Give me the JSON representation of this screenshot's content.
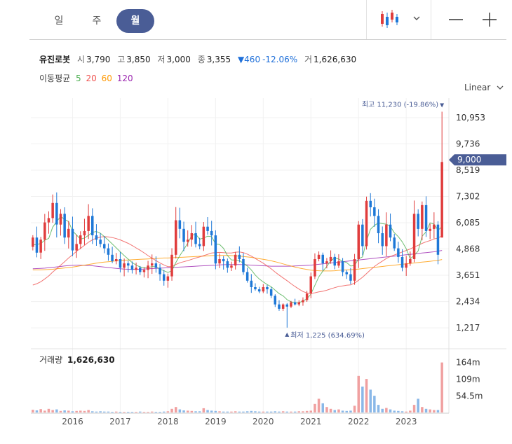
{
  "period_tabs": [
    {
      "label": "일",
      "active": false
    },
    {
      "label": "주",
      "active": false
    },
    {
      "label": "월",
      "active": true
    }
  ],
  "stock": {
    "name": "유진로봇",
    "open_label": "시",
    "open": "3,790",
    "high_label": "고",
    "high": "3,850",
    "low_label": "저",
    "low": "3,000",
    "close_label": "종",
    "close": "3,355",
    "change_symbol": "▼",
    "change": "460",
    "change_pct": "-12.06%",
    "volume_label": "거",
    "volume": "1,626,630"
  },
  "ma_legend": {
    "label": "이동평균",
    "items": [
      {
        "period": "5",
        "color": "#4caf50"
      },
      {
        "period": "20",
        "color": "#ef5350"
      },
      {
        "period": "60",
        "color": "#ff9800"
      },
      {
        "period": "120",
        "color": "#9c27b0"
      }
    ]
  },
  "scale_label": "Linear",
  "high_marker": "최고 11,230 (-19.86%)",
  "low_marker": "최저 1,225 (634.69%)",
  "current_price_label": "9,000",
  "volume_panel_label": "거래량",
  "volume_panel_value": "1,626,630",
  "colors": {
    "up": "#e03c3c",
    "down": "#1e78d7",
    "accent": "#4a5d96"
  },
  "chart_data": {
    "type": "candlestick",
    "y_ticks": [
      "10,953",
      "9,736",
      "8,519",
      "7,302",
      "6,085",
      "4,868",
      "3,651",
      "2,434",
      "1,217"
    ],
    "y_tick_values": [
      10953,
      9736,
      8519,
      7302,
      6085,
      4868,
      3651,
      2434,
      1217
    ],
    "ylim": [
      830,
      11700
    ],
    "x_ticks": [
      "2016",
      "2017",
      "2018",
      "2019",
      "2020",
      "2021",
      "2022",
      "2023"
    ],
    "volume_ticks": [
      "164m",
      "109m",
      "54.5m"
    ],
    "volume_tick_values": [
      164,
      109,
      54.5
    ],
    "volume_unit": "m",
    "months": 104,
    "closes": [
      5400,
      4700,
      5300,
      6100,
      6300,
      7000,
      6000,
      6500,
      5400,
      5800,
      4800,
      5100,
      5500,
      5700,
      6400,
      5500,
      5300,
      5100,
      4900,
      4600,
      4300,
      4400,
      4000,
      4200,
      4100,
      3900,
      4000,
      3800,
      3900,
      4100,
      4200,
      4000,
      3700,
      3400,
      3600,
      4600,
      6200,
      5800,
      5200,
      5300,
      5600,
      5100,
      5000,
      5900,
      5700,
      5500,
      4200,
      4400,
      4300,
      4000,
      4100,
      4600,
      4400,
      3800,
      3400,
      3100,
      3000,
      2900,
      3100,
      3000,
      2700,
      2300,
      2100,
      2300,
      2200,
      2400,
      2300,
      2400,
      2500,
      2800,
      3600,
      4400,
      4600,
      4200,
      4300,
      4500,
      4100,
      4300,
      3800,
      3700,
      3400,
      4400,
      6000,
      5000,
      7100,
      6800,
      6400,
      5600,
      5000,
      6000,
      5400,
      4900,
      4500,
      4000,
      4200,
      4400,
      6500,
      5800,
      6900,
      5700,
      5800,
      6000,
      4600,
      8900
    ],
    "ma5": [
      5050,
      5080,
      5120,
      5280,
      5360,
      5880,
      6140,
      6380,
      6240,
      6140,
      5700,
      5520,
      5320,
      5380,
      5500,
      5640,
      5680,
      5600,
      5440,
      5280,
      5100,
      4920,
      4740,
      4560,
      4400,
      4240,
      4120,
      4040,
      4000,
      4000,
      4060,
      4040,
      3940,
      3860,
      3780,
      3860,
      4240,
      4560,
      4840,
      5140,
      5500,
      5560,
      5320,
      5380,
      5460,
      5440,
      5100,
      5080,
      4900,
      4560,
      4360,
      4360,
      4340,
      4200,
      4080,
      3900,
      3660,
      3480,
      3340,
      3220,
      3120,
      2960,
      2800,
      2700,
      2520,
      2420,
      2380,
      2380,
      2460,
      2560,
      2780,
      3180,
      3580,
      3840,
      4060,
      4320,
      4460,
      4400,
      4300,
      4240,
      4080,
      4100,
      4420,
      4500,
      5260,
      5780,
      5960,
      6080,
      6040,
      6020,
      5920,
      5620,
      5440,
      5200,
      4880,
      4420,
      4560,
      4780,
      5460,
      5660,
      6080,
      6020,
      5740,
      5900
    ],
    "ma20": [
      3200,
      3260,
      3350,
      3480,
      3620,
      3800,
      3950,
      4120,
      4280,
      4450,
      4600,
      4760,
      4900,
      5040,
      5180,
      5290,
      5370,
      5420,
      5440,
      5430,
      5400,
      5350,
      5290,
      5210,
      5130,
      5030,
      4920,
      4810,
      4690,
      4560,
      4440,
      4330,
      4220,
      4130,
      4050,
      4050,
      4150,
      4230,
      4280,
      4330,
      4390,
      4450,
      4500,
      4560,
      4620,
      4680,
      4700,
      4710,
      4700,
      4680,
      4680,
      4720,
      4730,
      4700,
      4630,
      4540,
      4430,
      4320,
      4210,
      4080,
      3950,
      3800,
      3660,
      3530,
      3400,
      3260,
      3130,
      3010,
      2900,
      2830,
      2810,
      2840,
      2880,
      2910,
      2960,
      3020,
      3080,
      3130,
      3160,
      3190,
      3210,
      3290,
      3420,
      3560,
      3730,
      3900,
      4060,
      4190,
      4310,
      4430,
      4520,
      4590,
      4660,
      4730,
      4800,
      4870,
      4960,
      5040,
      5130,
      5200,
      5260,
      5330,
      5380,
      5480
    ],
    "ma60": [
      3900,
      3900,
      3900,
      3910,
      3920,
      3930,
      3950,
      3970,
      3990,
      4010,
      4030,
      4060,
      4090,
      4120,
      4150,
      4180,
      4210,
      4240,
      4260,
      4280,
      4300,
      4320,
      4340,
      4350,
      4360,
      4370,
      4380,
      4390,
      4400,
      4410,
      4420,
      4430,
      4440,
      4450,
      4450,
      4460,
      4470,
      4480,
      4490,
      4500,
      4510,
      4520,
      4530,
      4540,
      4550,
      4560,
      4570,
      4570,
      4570,
      4570,
      4560,
      4550,
      4540,
      4520,
      4500,
      4480,
      4450,
      4420,
      4390,
      4360,
      4320,
      4280,
      4230,
      4180,
      4130,
      4080,
      4030,
      3990,
      3950,
      3920,
      3890,
      3870,
      3860,
      3850,
      3850,
      3850,
      3860,
      3880,
      3890,
      3900,
      3910,
      3920,
      3940,
      3960,
      3980,
      4000,
      4020,
      4040,
      4060,
      4080,
      4100,
      4120,
      4140,
      4160,
      4180,
      4200,
      4220,
      4240,
      4260,
      4280,
      4300,
      4320,
      4340,
      4380
    ],
    "ma120": [
      3950,
      3960,
      3970,
      3980,
      4000,
      4020,
      4040,
      4060,
      4080,
      4100,
      4110,
      4120,
      4120,
      4110,
      4100,
      4090,
      4070,
      4050,
      4030,
      4010,
      3990,
      3970,
      3950,
      3940,
      3930,
      3930,
      3930,
      3930,
      3940,
      3950,
      3960,
      3970,
      3980,
      3990,
      4000,
      4010,
      4020,
      4030,
      4040,
      4050,
      4060,
      4070,
      4080,
      4090,
      4100,
      4110,
      4120,
      4130,
      4140,
      4150,
      4150,
      4150,
      4150,
      4140,
      4130,
      4120,
      4110,
      4100,
      4090,
      4080,
      4070,
      4070,
      4070,
      4070,
      4070,
      4070,
      4080,
      4090,
      4100,
      4110,
      4120,
      4140,
      4160,
      4180,
      4200,
      4220,
      4240,
      4260,
      4280,
      4300,
      4320,
      4340,
      4360,
      4380,
      4400,
      4420,
      4440,
      4460,
      4480,
      4500,
      4520,
      4540,
      4560,
      4580,
      4600,
      4620,
      4640,
      4660,
      4680,
      4700,
      4720,
      4740,
      4770,
      4800
    ],
    "volume": [
      9,
      7,
      11,
      6,
      12,
      8,
      10,
      5,
      7,
      6,
      4,
      5,
      6,
      5,
      8,
      4,
      3,
      4,
      3,
      3,
      2,
      3,
      2,
      2,
      2,
      2,
      2,
      3,
      2,
      2,
      3,
      2,
      2,
      3,
      4,
      12,
      18,
      10,
      7,
      6,
      5,
      4,
      4,
      14,
      8,
      6,
      5,
      4,
      3,
      3,
      3,
      4,
      3,
      3,
      4,
      5,
      4,
      3,
      3,
      3,
      3,
      4,
      3,
      4,
      3,
      3,
      3,
      4,
      4,
      5,
      6,
      28,
      45,
      30,
      18,
      12,
      8,
      10,
      6,
      5,
      6,
      22,
      120,
      85,
      110,
      75,
      55,
      25,
      12,
      15,
      10,
      6,
      5,
      4,
      3,
      6,
      25,
      45,
      18,
      12,
      10,
      8,
      8,
      164
    ]
  }
}
